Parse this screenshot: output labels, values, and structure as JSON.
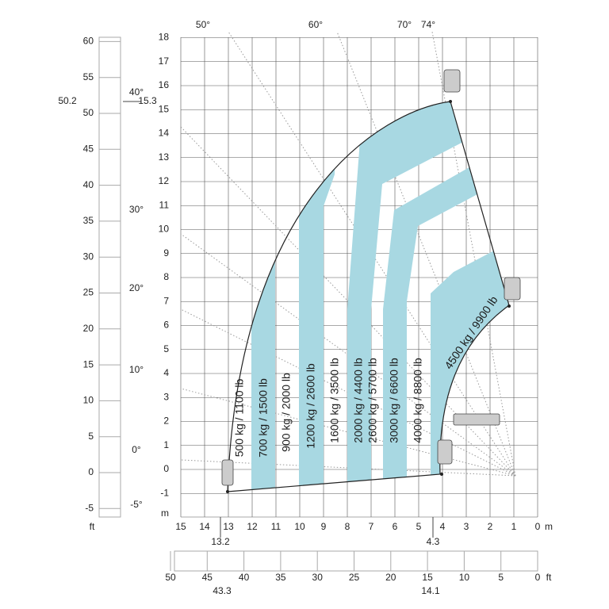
{
  "axes": {
    "y_m_ticks": [
      18,
      17,
      16,
      15,
      14,
      13,
      12,
      11,
      10,
      9,
      8,
      7,
      6,
      5,
      4,
      3,
      2,
      1,
      0,
      -1
    ],
    "x_m_ticks": [
      15,
      14,
      13,
      12,
      11,
      10,
      9,
      8,
      7,
      6,
      5,
      4,
      3,
      2,
      1,
      0
    ],
    "ft_left_ticks": [
      60,
      55,
      50,
      45,
      40,
      35,
      30,
      25,
      20,
      15,
      10,
      5,
      0,
      -5
    ],
    "ft_bottom_ticks": [
      50,
      45,
      40,
      35,
      30,
      25,
      20,
      15,
      10,
      5,
      0
    ],
    "angle_left": [
      "40°",
      "30°",
      "20°",
      "10°",
      "0°",
      "-5°"
    ],
    "angle_top": [
      "50°",
      "60°",
      "70°",
      "74°"
    ],
    "unit_m": "m",
    "unit_ft": "ft"
  },
  "annotations": {
    "max_height_ft": "50.2",
    "max_height_m": "15.3",
    "reach_left_m": "13.2",
    "reach_right_m": "4.3",
    "reach_left_ft": "43.3",
    "reach_right_ft": "14.1"
  },
  "load_zones": [
    "500 kg / 1100 lb",
    "700 kg / 1500 lb",
    "900 kg / 2000 lb",
    "1200 kg / 2600 lb",
    "1600 kg / 3500 lb",
    "2000 kg / 4400 lb",
    "2600 kg / 5700 lb",
    "3000 kg / 6600 lb",
    "4000 kg / 8800 lb",
    "4500 kg / 9900 lb"
  ]
}
